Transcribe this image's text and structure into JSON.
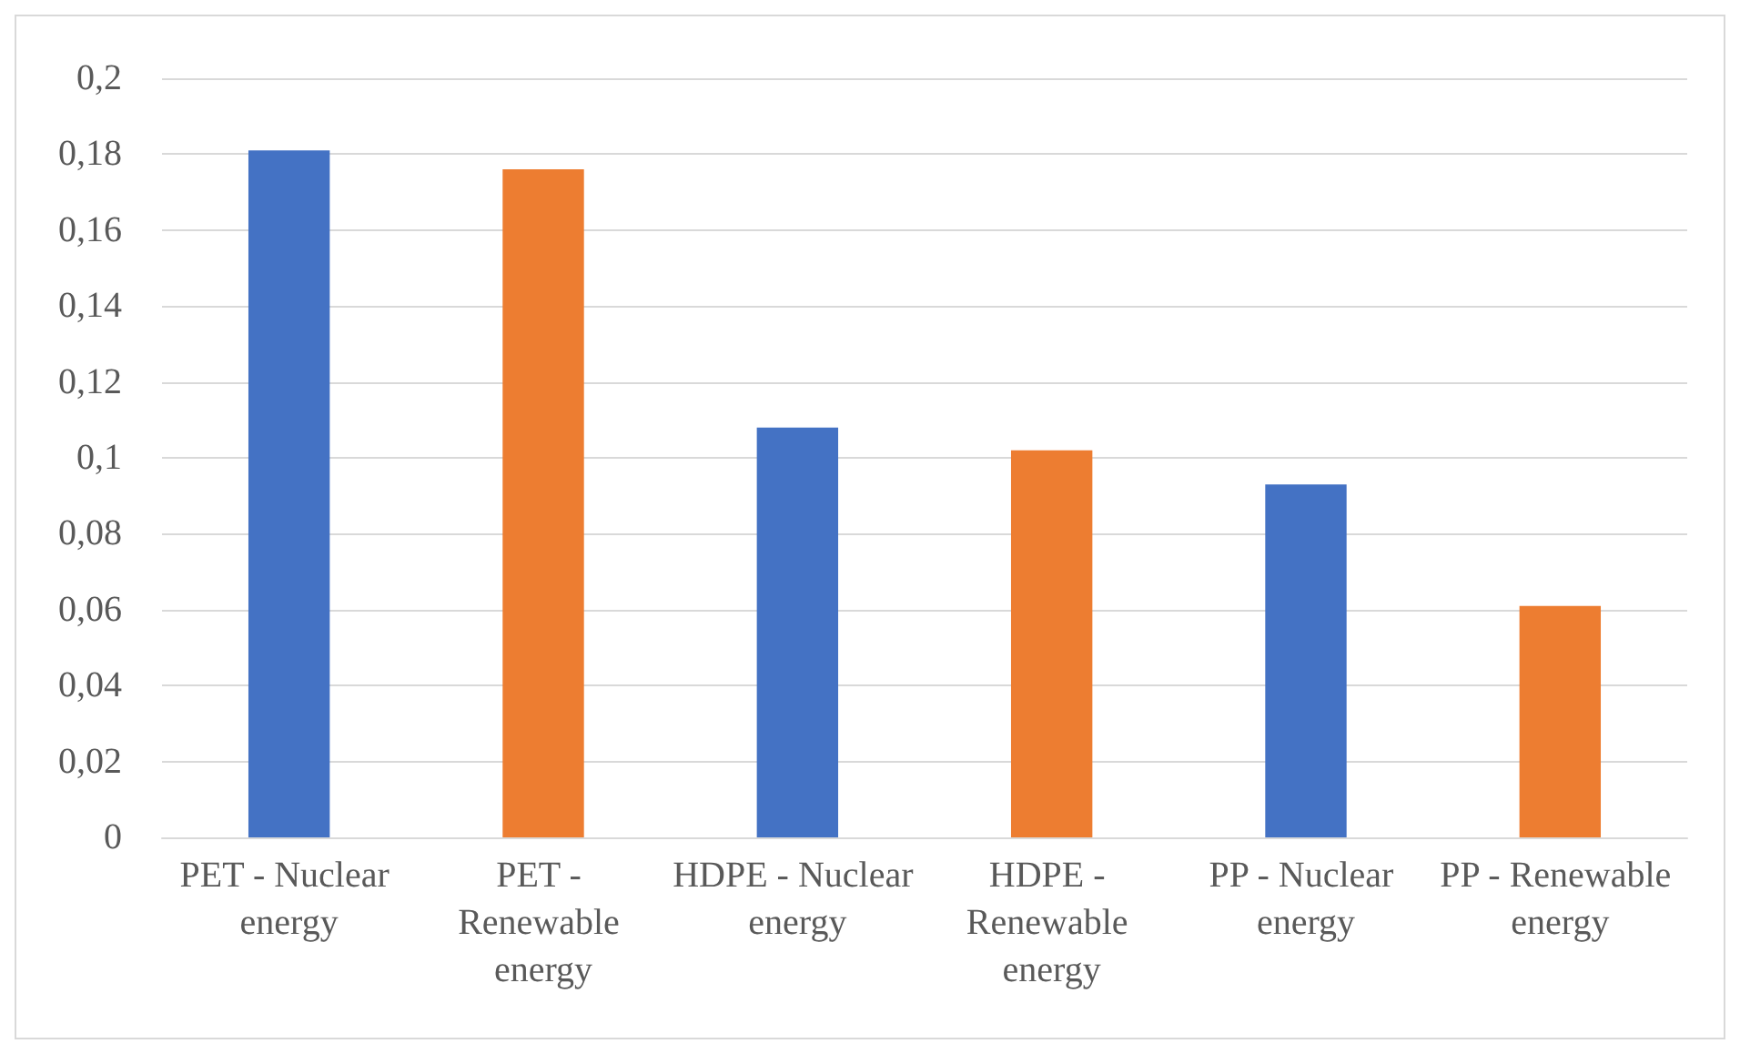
{
  "chart_data": {
    "type": "bar",
    "categories": [
      "PET - Nuclear energy",
      "PET - Renewable energy",
      "HDPE - Nuclear energy",
      "HDPE - Renewable energy",
      "PP - Nuclear energy",
      "PP - Renewable energy"
    ],
    "values": [
      0.181,
      0.176,
      0.108,
      0.102,
      0.093,
      0.061
    ],
    "colors": [
      "#4472c4",
      "#ed7d31",
      "#4472c4",
      "#ed7d31",
      "#4472c4",
      "#ed7d31"
    ],
    "ylim": [
      0,
      0.2
    ],
    "yticks": [
      0,
      {
        "value": 0.02,
        "label": "0,02"
      },
      {
        "value": 0.04,
        "label": "0,04"
      },
      {
        "value": 0.06,
        "label": "0,06"
      },
      {
        "value": 0.08,
        "label": "0,08"
      },
      {
        "value": 0.1,
        "label": "0,1"
      },
      {
        "value": 0.12,
        "label": "0,12"
      },
      {
        "value": 0.14,
        "label": "0,14"
      },
      {
        "value": 0.16,
        "label": "0,16"
      },
      {
        "value": 0.18,
        "label": "0,18"
      },
      {
        "value": 0.2,
        "label": "0,2"
      }
    ],
    "grid": "y"
  }
}
